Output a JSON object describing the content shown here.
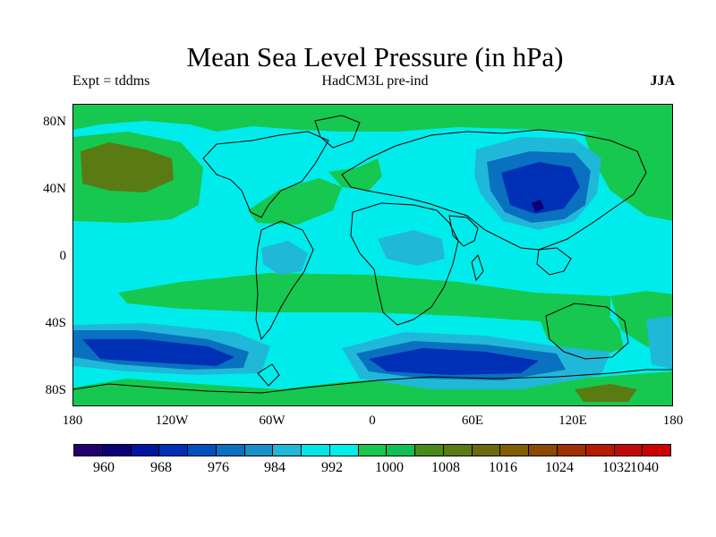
{
  "title": "Mean Sea Level Pressure (in hPa)",
  "subtitle_left": "Expt = tddms",
  "subtitle_center": "HadCM3L pre-ind",
  "subtitle_right": "JJA",
  "lat_labels": [
    "80N",
    "40N",
    "0",
    "40S",
    "80S"
  ],
  "lon_labels": [
    "180",
    "120W",
    "60W",
    "0",
    "60E",
    "120E",
    "180"
  ],
  "colorbar": {
    "labels": [
      "960",
      "968",
      "976",
      "984",
      "992",
      "1000",
      "1008",
      "1016",
      "1024",
      "1032",
      "1040"
    ],
    "colors": [
      "#22006e",
      "#0b0077",
      "#0015a0",
      "#0030b5",
      "#0050c0",
      "#0a70c0",
      "#1890c8",
      "#20b8d8",
      "#00e5e5",
      "#00f0e8",
      "#16c850",
      "#11c057",
      "#4a8a1a",
      "#5a7a14",
      "#6a6a0e",
      "#806000",
      "#8a4a00",
      "#a03000",
      "#b81a00",
      "#c00808",
      "#d00000"
    ]
  },
  "map_colors": {
    "background": "#00ecec",
    "high_1008": "#16c850",
    "high_1016": "#5a7a14",
    "low_992": "#20b8d8",
    "low_984": "#0a70c0",
    "low_976": "#0030b5",
    "low_968": "#0b0077"
  }
}
